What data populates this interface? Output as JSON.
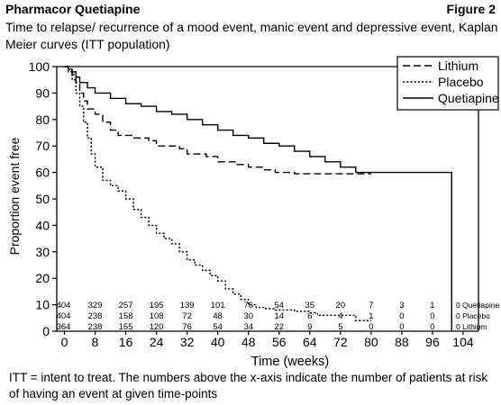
{
  "header": {
    "left": "Pharmacor Quetiapine",
    "right": "Figure 2"
  },
  "chart_data": {
    "type": "line",
    "subtype": "kaplan-meier step curves",
    "title": "Time to relapse/ recurrence of a mood event, manic event and depressive event, Kaplan Meier curves (ITT population)",
    "xlabel": "Time (weeks)",
    "ylabel": "Proportion event free",
    "xlim": [
      -2,
      108
    ],
    "ylim": [
      0,
      100
    ],
    "x_ticks": [
      "0",
      "8",
      "16",
      "24",
      "32",
      "40",
      "48",
      "56",
      "64",
      "72",
      "80",
      "88",
      "96",
      "104"
    ],
    "y_ticks": [
      "0",
      "10",
      "20",
      "30",
      "40",
      "50",
      "60",
      "70",
      "80",
      "90",
      "100"
    ],
    "legend_position": "top-right",
    "grid": false,
    "series": [
      {
        "name": "Lithium",
        "style": "dashed",
        "points": [
          [
            0,
            100
          ],
          [
            1,
            99
          ],
          [
            2,
            97
          ],
          [
            3,
            94
          ],
          [
            4,
            90
          ],
          [
            5,
            87
          ],
          [
            6,
            84
          ],
          [
            8,
            82
          ],
          [
            10,
            79
          ],
          [
            12,
            76
          ],
          [
            14,
            74
          ],
          [
            18,
            73
          ],
          [
            22,
            72
          ],
          [
            24,
            70
          ],
          [
            30,
            69
          ],
          [
            32,
            67
          ],
          [
            37,
            66
          ],
          [
            40,
            64
          ],
          [
            45,
            63
          ],
          [
            48,
            62
          ],
          [
            52,
            61
          ],
          [
            55,
            60
          ],
          [
            60,
            59.5
          ],
          [
            72,
            59.5
          ],
          [
            80,
            59.5
          ]
        ]
      },
      {
        "name": "Placebo",
        "style": "dotted",
        "points": [
          [
            0,
            100
          ],
          [
            1,
            98
          ],
          [
            2,
            95
          ],
          [
            3,
            90
          ],
          [
            4,
            85
          ],
          [
            5,
            79
          ],
          [
            6,
            73
          ],
          [
            7,
            67
          ],
          [
            8,
            62
          ],
          [
            10,
            57
          ],
          [
            12,
            55
          ],
          [
            14,
            53
          ],
          [
            16,
            50
          ],
          [
            18,
            46
          ],
          [
            20,
            43
          ],
          [
            22,
            40
          ],
          [
            24,
            37
          ],
          [
            26,
            35
          ],
          [
            28,
            33
          ],
          [
            30,
            30
          ],
          [
            32,
            27
          ],
          [
            34,
            25
          ],
          [
            36,
            23
          ],
          [
            38,
            21
          ],
          [
            40,
            19
          ],
          [
            42,
            16
          ],
          [
            44,
            14
          ],
          [
            46,
            12
          ],
          [
            48,
            10
          ],
          [
            50,
            9
          ],
          [
            52,
            8.5
          ],
          [
            55,
            8
          ],
          [
            60,
            7.5
          ],
          [
            62,
            7.5
          ],
          [
            64,
            7
          ],
          [
            66,
            6
          ],
          [
            76,
            6
          ],
          [
            76,
            4
          ],
          [
            80,
            4
          ]
        ]
      },
      {
        "name": "Quetiapine",
        "style": "solid",
        "points": [
          [
            0,
            100
          ],
          [
            1,
            99
          ],
          [
            2,
            98
          ],
          [
            3,
            96
          ],
          [
            4,
            94
          ],
          [
            6,
            92
          ],
          [
            8,
            90
          ],
          [
            12,
            88
          ],
          [
            16,
            86
          ],
          [
            20,
            85
          ],
          [
            24,
            83
          ],
          [
            28,
            82
          ],
          [
            32,
            80
          ],
          [
            36,
            78
          ],
          [
            40,
            76
          ],
          [
            44,
            74
          ],
          [
            48,
            73
          ],
          [
            52,
            71
          ],
          [
            56,
            70
          ],
          [
            60,
            68
          ],
          [
            64,
            66
          ],
          [
            68,
            64
          ],
          [
            72,
            62
          ],
          [
            76,
            60
          ],
          [
            88,
            60
          ],
          [
            101,
            60
          ],
          [
            101,
            0
          ]
        ]
      }
    ],
    "at_risk": {
      "timepoints": [
        0,
        8,
        16,
        24,
        32,
        40,
        48,
        56,
        64,
        72,
        80,
        88,
        96
      ],
      "rows": [
        {
          "name": "Quetiapine",
          "label": "0 Quetiapine",
          "values": [
            "404",
            "329",
            "257",
            "195",
            "139",
            "101",
            "76",
            "54",
            "35",
            "20",
            "7",
            "3",
            "1"
          ]
        },
        {
          "name": "Placebo",
          "label": "0 Placebo",
          "values": [
            "404",
            "238",
            "158",
            "108",
            "72",
            "48",
            "30",
            "14",
            "6",
            "4",
            "1",
            "0",
            "0"
          ]
        },
        {
          "name": "Lithium",
          "label": "0 Lithium",
          "values": [
            "364",
            "238",
            "155",
            "120",
            "76",
            "54",
            "34",
            "22",
            "9",
            "5",
            "0",
            "0",
            "0"
          ]
        }
      ]
    }
  },
  "footnote": "ITT = intent to treat.  The numbers above the x-axis indicate the number of patients at risk of having an event at given time-points"
}
